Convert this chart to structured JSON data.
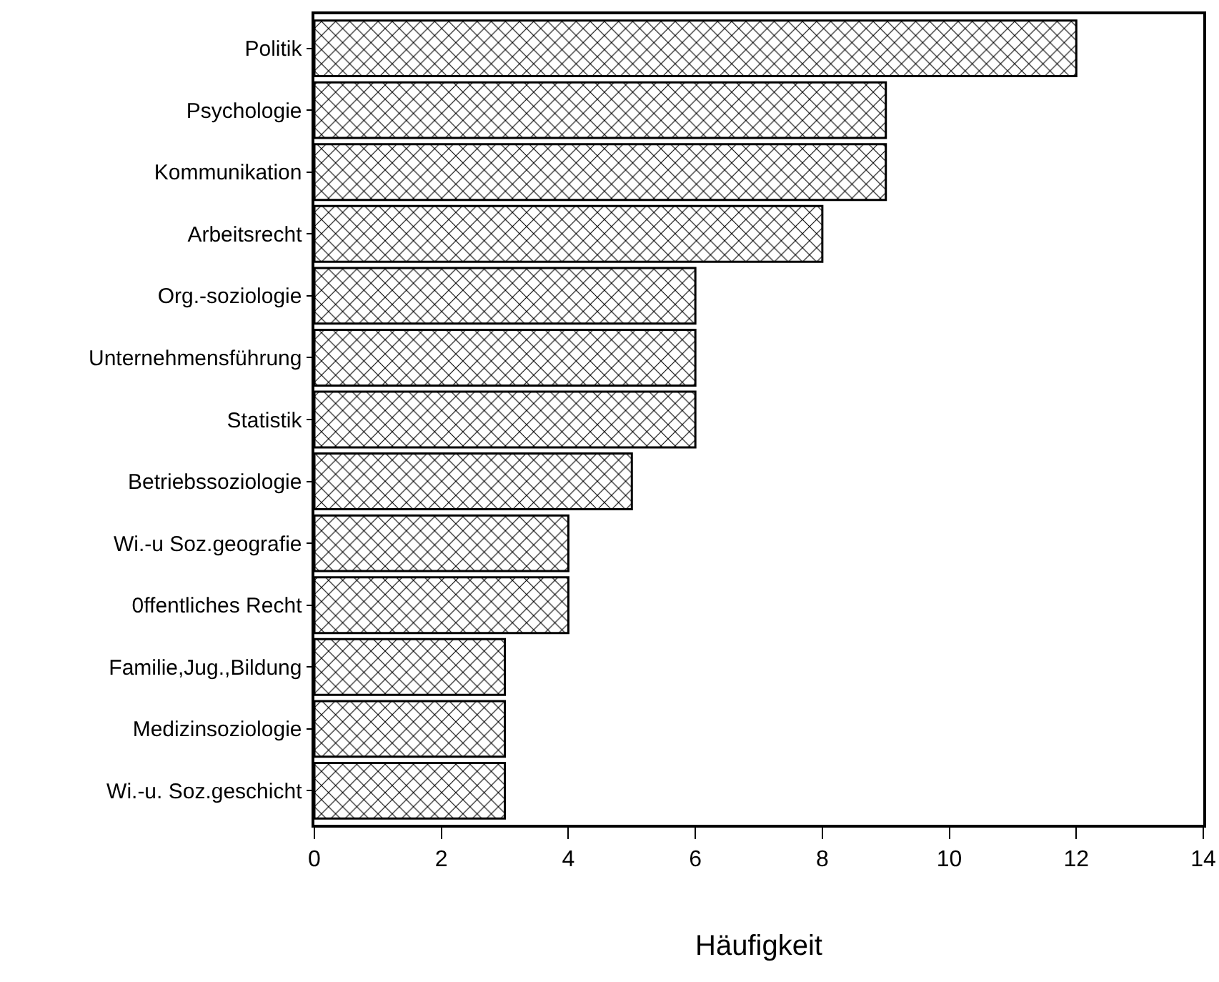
{
  "chart_data": {
    "type": "bar",
    "orientation": "horizontal",
    "xlabel": "Häufigkeit",
    "categories": [
      "Politik",
      "Psychologie",
      "Kommunikation",
      "Arbeitsrecht",
      "Org.-soziologie",
      "Unternehmensführung",
      "Statistik",
      "Betriebssoziologie",
      "Wi.-u Soz.geografie",
      "0ffentliches Recht",
      "Familie,Jug.,Bildung",
      "Medizinsoziologie",
      "Wi.-u. Soz.geschicht"
    ],
    "values": [
      12,
      9,
      9,
      8,
      6,
      6,
      6,
      5,
      4,
      4,
      3,
      3,
      3
    ],
    "color": "#000000",
    "xlim": [
      0,
      14
    ],
    "xticks": [
      0,
      2,
      4,
      6,
      8,
      10,
      12,
      14
    ],
    "grid": false,
    "legend": false
  }
}
